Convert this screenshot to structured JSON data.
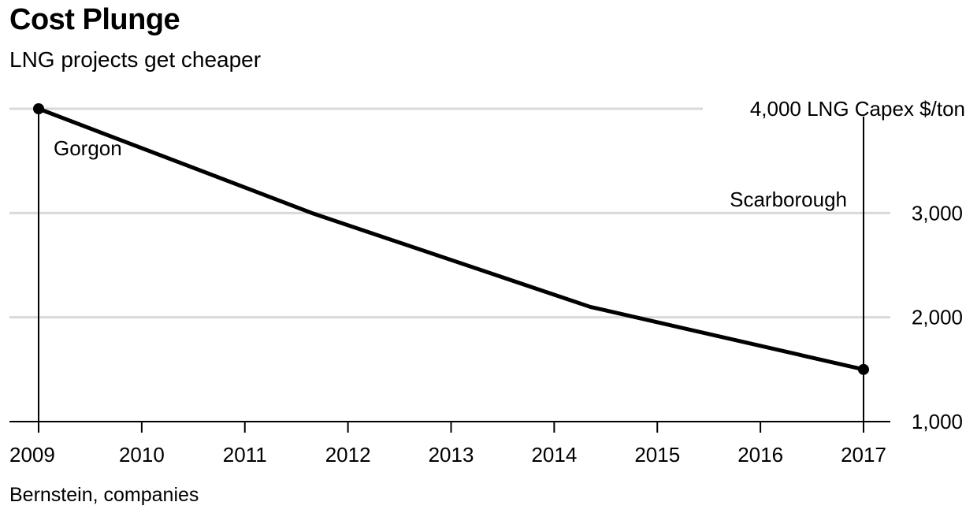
{
  "header": {
    "title": "Cost Plunge",
    "subtitle": "LNG projects get cheaper"
  },
  "footer": {
    "source": "Bernstein, companies"
  },
  "chart_data": {
    "type": "line",
    "title": "Cost Plunge",
    "subtitle": "LNG projects get cheaper",
    "ylabel": "LNG Capex $/ton",
    "x": [
      2009,
      2011.65,
      2014.35,
      2017
    ],
    "values": [
      4000,
      3000,
      2100,
      1500
    ],
    "xlim": [
      2008.72,
      2017.28
    ],
    "ylim": [
      1000,
      4000
    ],
    "x_ticks": [
      "2009",
      "2010",
      "2011",
      "2012",
      "2013",
      "2014",
      "2015",
      "2016",
      "2017"
    ],
    "y_ticks": [
      "1,000",
      "2,000",
      "3,000",
      "4,000"
    ],
    "y_top_label": "4,000 LNG Capex $/ton",
    "y_axis_side": "right",
    "grid": true,
    "line_color": "#000000",
    "grid_color": "#d9d9d9",
    "annotations": [
      {
        "label": "Gorgon",
        "x": 2009,
        "y": 4000
      },
      {
        "label": "Scarborough",
        "x": 2017,
        "y": 1500
      }
    ]
  }
}
